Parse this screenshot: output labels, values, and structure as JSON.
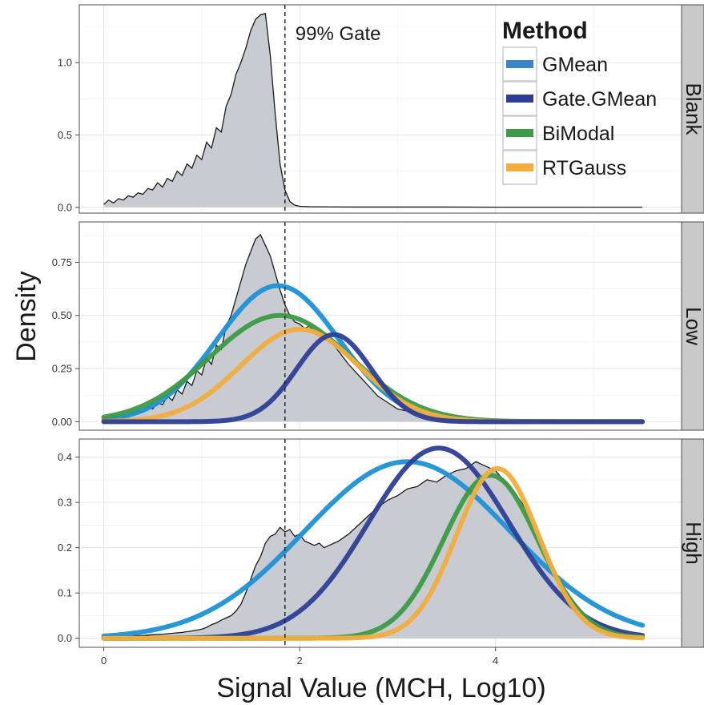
{
  "chart_data": {
    "type": "area",
    "xlabel": "Signal Value (MCH, Log10)",
    "ylabel": "Density",
    "xlim": [
      -0.25,
      5.9
    ],
    "x_ticks": [
      0,
      2,
      4
    ],
    "grid": true,
    "gate": {
      "x": 1.85,
      "label": "99% Gate"
    },
    "legend": {
      "title": "Method",
      "placement": "top-right",
      "items": [
        {
          "name": "GMean",
          "color": "#3d85c6"
        },
        {
          "name": "Gate.GMean",
          "color": "#2e3e95"
        },
        {
          "name": "BiModal",
          "color": "#3d9a45"
        },
        {
          "name": "RTGauss",
          "color": "#f2ad3e"
        }
      ]
    },
    "colors": {
      "GMean": "#1e90d6",
      "Gate.GMean": "#2e3e95",
      "BiModal": "#3d9a45",
      "RTGauss": "#f2ad3e",
      "density_fill": "#c8cbd2",
      "density_line": "#1a1a1a",
      "strip_fill": "#c9c9c9",
      "panel_border": "#4d4d4d"
    },
    "panels": [
      {
        "name": "Blank",
        "ylim": [
          -0.04,
          1.4
        ],
        "y_ticks": [
          0.0,
          0.5,
          1.0
        ],
        "y_tick_labels": [
          "0.0",
          "0.5",
          "1.0"
        ],
        "density": {
          "x": [
            0,
            0.05,
            0.1,
            0.15,
            0.2,
            0.25,
            0.3,
            0.35,
            0.4,
            0.45,
            0.5,
            0.55,
            0.6,
            0.65,
            0.7,
            0.75,
            0.8,
            0.85,
            0.9,
            0.95,
            1.0,
            1.05,
            1.1,
            1.15,
            1.2,
            1.25,
            1.3,
            1.35,
            1.4,
            1.45,
            1.5,
            1.55,
            1.6,
            1.65,
            1.7,
            1.75,
            1.8,
            1.85,
            1.9,
            1.95,
            2.0,
            2.1,
            2.3,
            2.6,
            3.0,
            3.5,
            4.0,
            4.5,
            5.0,
            5.5
          ],
          "y": [
            0.02,
            0.05,
            0.03,
            0.06,
            0.05,
            0.08,
            0.07,
            0.1,
            0.09,
            0.13,
            0.12,
            0.17,
            0.14,
            0.2,
            0.18,
            0.25,
            0.22,
            0.3,
            0.27,
            0.36,
            0.33,
            0.45,
            0.41,
            0.55,
            0.52,
            0.7,
            0.78,
            0.92,
            1.0,
            1.1,
            1.22,
            1.3,
            1.33,
            1.34,
            1.05,
            0.65,
            0.3,
            0.12,
            0.04,
            0.015,
            0.007,
            0.004,
            0.003,
            0.002,
            0.002,
            0.002,
            0.001,
            0.001,
            0.001,
            0.001
          ]
        },
        "series": []
      },
      {
        "name": "Low",
        "ylim": [
          -0.04,
          0.94
        ],
        "y_ticks": [
          0.0,
          0.25,
          0.5,
          0.75
        ],
        "y_tick_labels": [
          "0.00",
          "0.25",
          "0.50",
          "0.75"
        ],
        "density": {
          "x": [
            0,
            0.05,
            0.1,
            0.15,
            0.2,
            0.25,
            0.3,
            0.35,
            0.4,
            0.45,
            0.5,
            0.55,
            0.6,
            0.65,
            0.7,
            0.75,
            0.8,
            0.85,
            0.9,
            0.95,
            1.0,
            1.05,
            1.1,
            1.15,
            1.2,
            1.25,
            1.3,
            1.35,
            1.4,
            1.45,
            1.5,
            1.55,
            1.6,
            1.65,
            1.7,
            1.75,
            1.8,
            1.85,
            1.9,
            1.95,
            2.0,
            2.05,
            2.1,
            2.15,
            2.2,
            2.25,
            2.3,
            2.35,
            2.4,
            2.45,
            2.5,
            2.6,
            2.7,
            2.8,
            2.9,
            3.0,
            3.2,
            3.4,
            3.6,
            3.8,
            4.0,
            4.5,
            5.0,
            5.5
          ],
          "y": [
            0.01,
            0.02,
            0.015,
            0.03,
            0.025,
            0.04,
            0.035,
            0.05,
            0.045,
            0.07,
            0.06,
            0.09,
            0.08,
            0.12,
            0.1,
            0.15,
            0.13,
            0.19,
            0.17,
            0.24,
            0.22,
            0.3,
            0.27,
            0.36,
            0.34,
            0.45,
            0.5,
            0.58,
            0.66,
            0.74,
            0.8,
            0.86,
            0.88,
            0.83,
            0.78,
            0.7,
            0.62,
            0.55,
            0.5,
            0.47,
            0.46,
            0.44,
            0.45,
            0.42,
            0.41,
            0.4,
            0.38,
            0.36,
            0.33,
            0.3,
            0.27,
            0.22,
            0.17,
            0.12,
            0.09,
            0.06,
            0.04,
            0.025,
            0.015,
            0.01,
            0.006,
            0.004,
            0.003,
            0.003
          ]
        },
        "series": [
          {
            "name": "GMean",
            "mean": 1.78,
            "sd": 0.62,
            "peak": 0.64
          },
          {
            "name": "BiModal",
            "mean": 1.8,
            "sd": 0.72,
            "peak": 0.5
          },
          {
            "name": "RTGauss",
            "mean": 2.0,
            "sd": 0.6,
            "peak": 0.435
          },
          {
            "name": "Gate.GMean",
            "mean": 2.35,
            "sd": 0.38,
            "peak": 0.41
          }
        ]
      },
      {
        "name": "High",
        "ylim": [
          -0.02,
          0.44
        ],
        "y_ticks": [
          0.0,
          0.1,
          0.2,
          0.3,
          0.4
        ],
        "y_tick_labels": [
          "0.0",
          "0.1",
          "0.2",
          "0.3",
          "0.4"
        ],
        "density": {
          "x": [
            0,
            0.1,
            0.2,
            0.3,
            0.4,
            0.5,
            0.6,
            0.7,
            0.8,
            0.9,
            1.0,
            1.05,
            1.1,
            1.15,
            1.2,
            1.25,
            1.3,
            1.35,
            1.4,
            1.45,
            1.5,
            1.55,
            1.6,
            1.65,
            1.7,
            1.75,
            1.8,
            1.85,
            1.9,
            1.95,
            2.0,
            2.05,
            2.1,
            2.15,
            2.2,
            2.25,
            2.3,
            2.35,
            2.4,
            2.5,
            2.6,
            2.7,
            2.8,
            2.9,
            3.0,
            3.1,
            3.2,
            3.3,
            3.4,
            3.5,
            3.6,
            3.7,
            3.8,
            3.9,
            4.0,
            4.1,
            4.2,
            4.3,
            4.4,
            4.5,
            4.6,
            4.7,
            4.8,
            4.9,
            5.0,
            5.1,
            5.2,
            5.3,
            5.4,
            5.5
          ],
          "y": [
            0.004,
            0.005,
            0.004,
            0.006,
            0.006,
            0.008,
            0.009,
            0.011,
            0.013,
            0.016,
            0.02,
            0.024,
            0.03,
            0.034,
            0.04,
            0.045,
            0.05,
            0.06,
            0.075,
            0.1,
            0.13,
            0.16,
            0.18,
            0.21,
            0.225,
            0.23,
            0.245,
            0.235,
            0.24,
            0.225,
            0.23,
            0.215,
            0.21,
            0.205,
            0.21,
            0.2,
            0.205,
            0.21,
            0.215,
            0.23,
            0.25,
            0.27,
            0.29,
            0.305,
            0.315,
            0.33,
            0.335,
            0.35,
            0.345,
            0.36,
            0.37,
            0.375,
            0.39,
            0.38,
            0.37,
            0.345,
            0.32,
            0.29,
            0.24,
            0.2,
            0.15,
            0.11,
            0.08,
            0.055,
            0.04,
            0.03,
            0.02,
            0.012,
            0.008,
            0.004
          ]
        },
        "series": [
          {
            "name": "GMean",
            "mean": 3.1,
            "sd": 1.05,
            "peak": 0.39
          },
          {
            "name": "Gate.GMean",
            "mean": 3.42,
            "sd": 0.72,
            "peak": 0.42
          },
          {
            "name": "BiModal",
            "mean": 3.95,
            "sd": 0.48,
            "peak": 0.36
          },
          {
            "name": "RTGauss",
            "mean": 4.02,
            "sd": 0.42,
            "peak": 0.375
          }
        ]
      }
    ]
  }
}
